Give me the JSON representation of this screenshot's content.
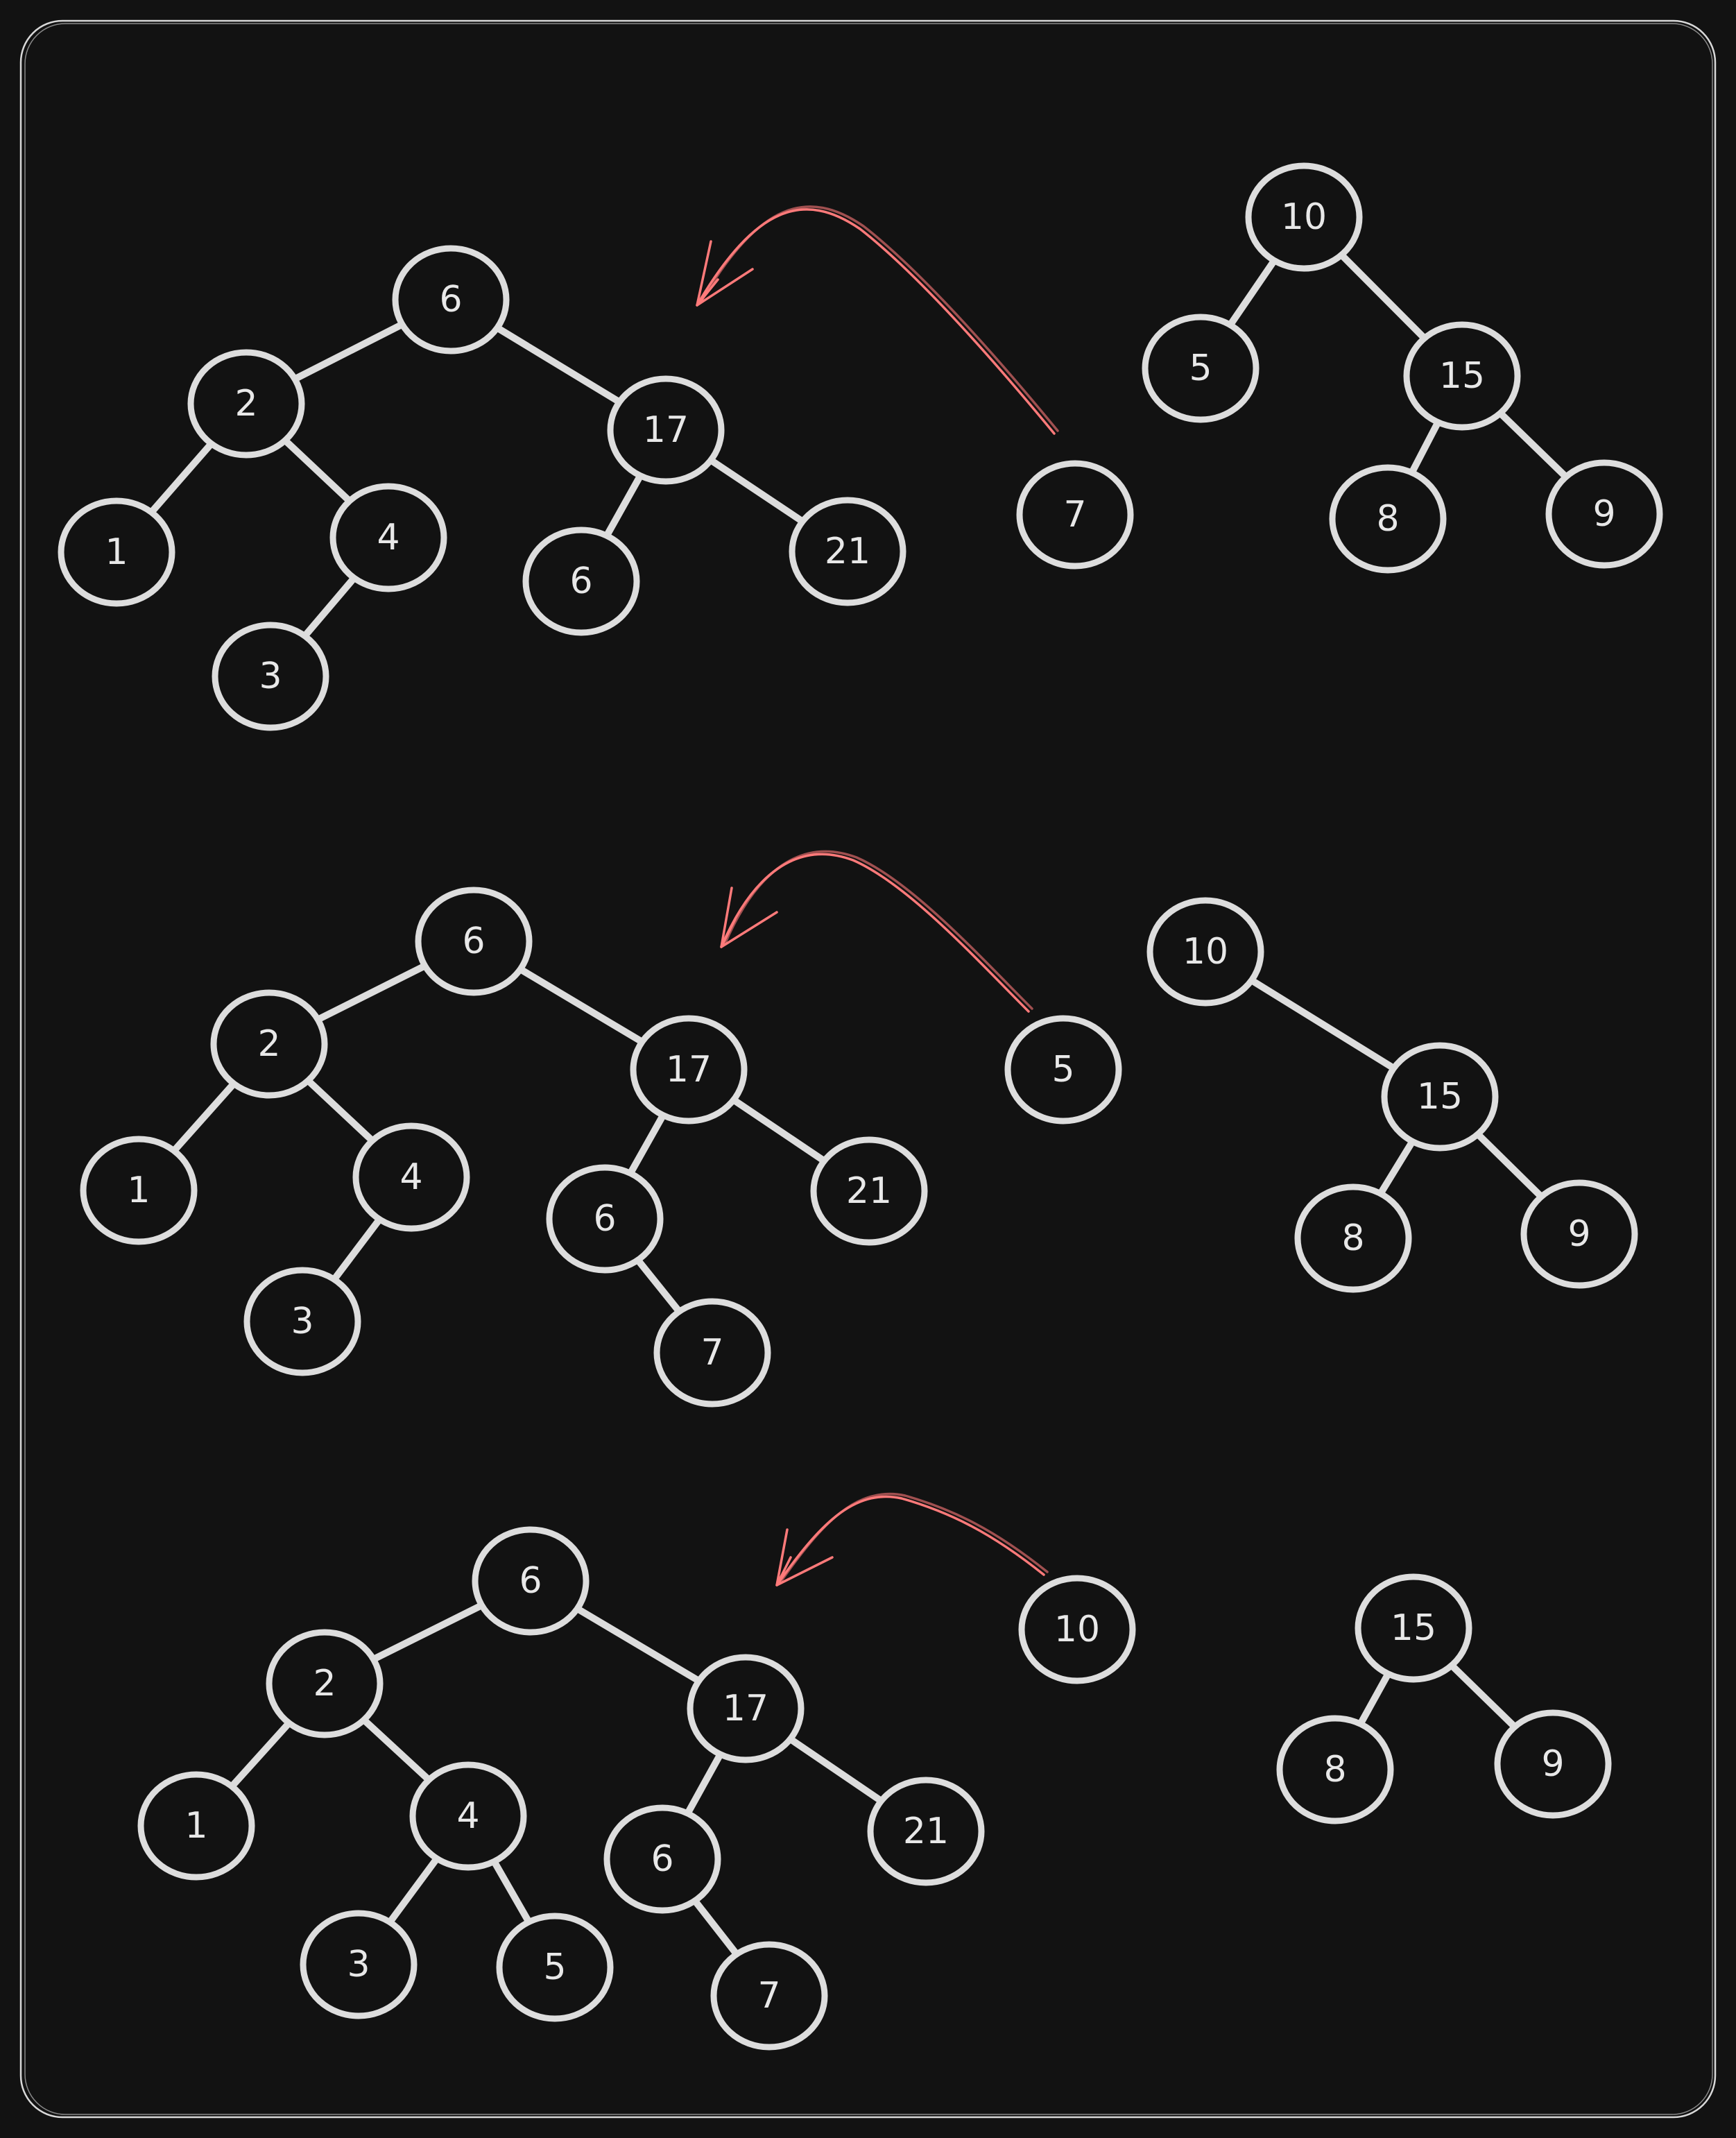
{
  "colors": {
    "background": "#121212",
    "stroke": "#dddddd",
    "arrow": "#ff7a7a"
  },
  "stages": [
    {
      "left_tree": {
        "nodes": [
          "6",
          "2",
          "17",
          "1",
          "4",
          "3",
          "6",
          "21"
        ],
        "edges": [
          [
            "6",
            "2"
          ],
          [
            "6",
            "17"
          ],
          [
            "2",
            "1"
          ],
          [
            "2",
            "4"
          ],
          [
            "4",
            "3"
          ],
          [
            "17",
            "6"
          ],
          [
            "17",
            "21"
          ]
        ]
      },
      "moving_node": "7",
      "right_tree": {
        "nodes": [
          "10",
          "5",
          "15",
          "8",
          "9"
        ],
        "edges": [
          [
            "10",
            "5"
          ],
          [
            "10",
            "15"
          ],
          [
            "15",
            "8"
          ],
          [
            "15",
            "9"
          ]
        ]
      }
    },
    {
      "left_tree": {
        "nodes": [
          "6",
          "2",
          "17",
          "1",
          "4",
          "3",
          "6",
          "21",
          "7"
        ],
        "edges": [
          [
            "6",
            "2"
          ],
          [
            "6",
            "17"
          ],
          [
            "2",
            "1"
          ],
          [
            "2",
            "4"
          ],
          [
            "4",
            "3"
          ],
          [
            "17",
            "6"
          ],
          [
            "17",
            "21"
          ],
          [
            "6",
            "7"
          ]
        ]
      },
      "moving_node": "5",
      "right_tree": {
        "nodes": [
          "10",
          "15",
          "8",
          "9"
        ],
        "edges": [
          [
            "10",
            "15"
          ],
          [
            "15",
            "8"
          ],
          [
            "15",
            "9"
          ]
        ]
      }
    },
    {
      "left_tree": {
        "nodes": [
          "6",
          "2",
          "17",
          "1",
          "4",
          "3",
          "5",
          "6",
          "21",
          "7"
        ],
        "edges": [
          [
            "6",
            "2"
          ],
          [
            "6",
            "17"
          ],
          [
            "2",
            "1"
          ],
          [
            "2",
            "4"
          ],
          [
            "4",
            "3"
          ],
          [
            "4",
            "5"
          ],
          [
            "17",
            "6"
          ],
          [
            "17",
            "21"
          ],
          [
            "6",
            "7"
          ]
        ]
      },
      "moving_node": "10",
      "right_tree": {
        "nodes": [
          "15",
          "8",
          "9"
        ],
        "edges": [
          [
            "15",
            "8"
          ],
          [
            "15",
            "9"
          ]
        ]
      }
    }
  ]
}
